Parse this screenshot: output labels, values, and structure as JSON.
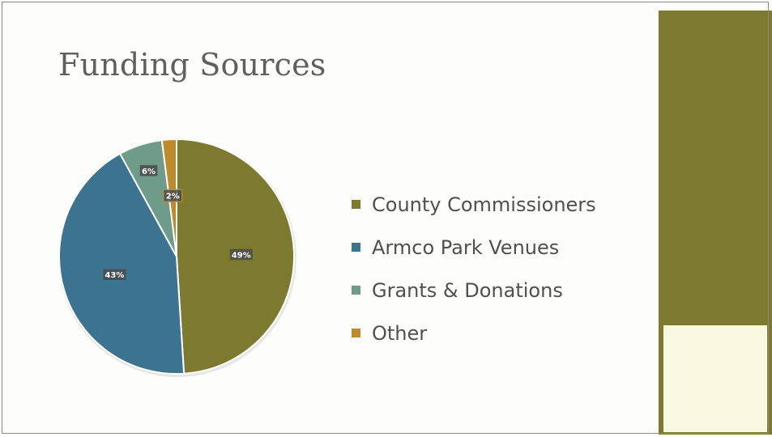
{
  "slide": {
    "title": "Funding Sources",
    "panel_color": "#7d7a2f",
    "panel_block_color": "#fbf8e1"
  },
  "chart_data": {
    "type": "pie",
    "title": "",
    "slices": [
      {
        "label": "County Commissioners",
        "value": 49,
        "data_label": "49%",
        "color": "#7c7a2f"
      },
      {
        "label": "Armco Park Venues",
        "value": 43,
        "data_label": "43%",
        "color": "#3c7391"
      },
      {
        "label": "Grants & Donations",
        "value": 6,
        "data_label": "6%",
        "color": "#6e9b8a"
      },
      {
        "label": "Other",
        "value": 2,
        "data_label": "2%",
        "color": "#bf8a2a"
      }
    ],
    "legend_position": "right"
  }
}
